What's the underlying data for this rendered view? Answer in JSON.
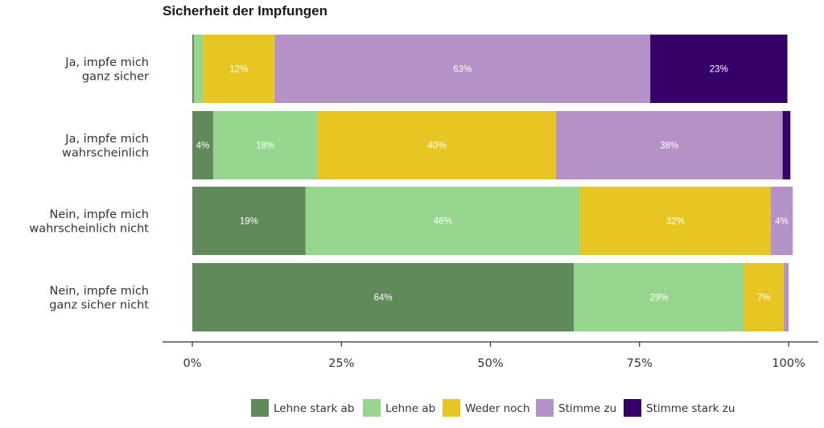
{
  "chart_data": {
    "type": "bar",
    "orientation": "horizontal",
    "stacked": "percent",
    "title": "Sicherheit der Impfungen",
    "xlabel": "",
    "ylabel": "",
    "xlim": [
      0,
      100
    ],
    "x_ticks": [
      "0%",
      "25%",
      "50%",
      "75%",
      "100%"
    ],
    "categories": [
      [
        "Ja, impfe mich",
        "ganz sicher"
      ],
      [
        "Ja, impfe mich",
        "wahrscheinlich"
      ],
      [
        "Nein, impfe mich",
        "wahrscheinlich nicht"
      ],
      [
        "Nein, impfe mich",
        "ganz sicher nicht"
      ]
    ],
    "series": [
      {
        "name": "Lehne stark ab",
        "color": "#618a5b",
        "values": [
          0.3,
          3.5,
          19,
          64
        ]
      },
      {
        "name": "Lehne ab",
        "color": "#96d68e",
        "values": [
          1.5,
          17.5,
          46,
          28.5
        ]
      },
      {
        "name": "Weder noch",
        "color": "#e7c624",
        "values": [
          12,
          40,
          32,
          6.7
        ]
      },
      {
        "name": "Stimme zu",
        "color": "#b491c6",
        "values": [
          63,
          38,
          3.7,
          0.8
        ]
      },
      {
        "name": "Stimme stark zu",
        "color": "#350068",
        "values": [
          23,
          1.3,
          0,
          0
        ]
      }
    ],
    "data_labels": [
      [
        "",
        "",
        "12%",
        "63%",
        "23%"
      ],
      [
        "4%",
        "18%",
        "40%",
        "38%",
        ""
      ],
      [
        "19%",
        "46%",
        "32%",
        "4%",
        ""
      ],
      [
        "64%",
        "29%",
        "7%",
        "",
        ""
      ]
    ],
    "legend": "bottom",
    "grid": false
  }
}
